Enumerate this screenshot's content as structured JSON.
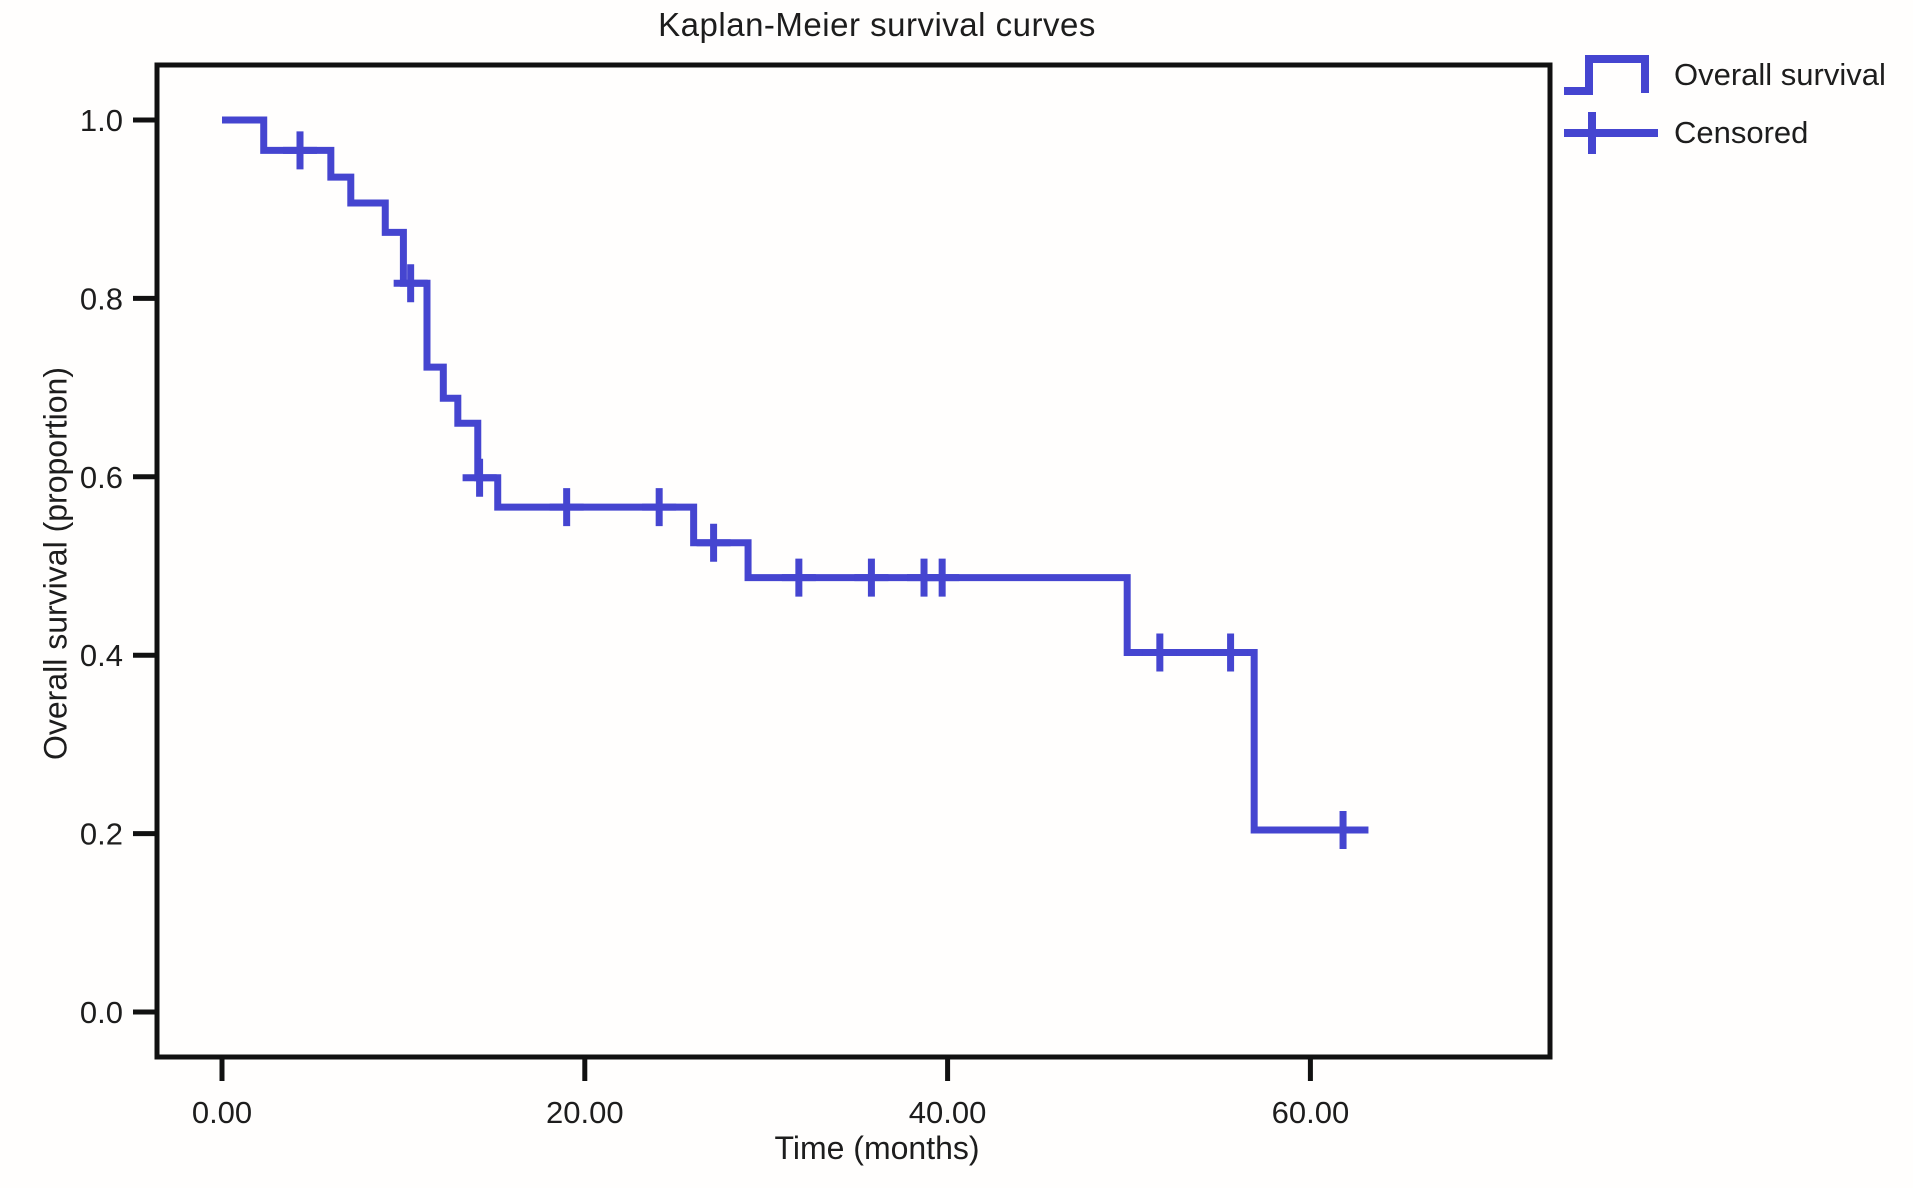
{
  "title": "Kaplan-Meier survival curves",
  "axes": {
    "x_label": "Time (months)",
    "y_label": "Overall survival (proportion)",
    "x_ticks": [
      {
        "value": 0,
        "label": "0.00"
      },
      {
        "value": 20,
        "label": "20.00"
      },
      {
        "value": 40,
        "label": "40.00"
      },
      {
        "value": 60,
        "label": "60.00"
      }
    ],
    "y_ticks": [
      {
        "value": 0.0,
        "label": "0.0"
      },
      {
        "value": 0.2,
        "label": "0.2"
      },
      {
        "value": 0.4,
        "label": "0.4"
      },
      {
        "value": 0.6,
        "label": "0.6"
      },
      {
        "value": 0.8,
        "label": "0.8"
      },
      {
        "value": 1.0,
        "label": "1.0"
      }
    ]
  },
  "legend": {
    "items": [
      {
        "label": "Overall survival",
        "marker": "step-line"
      },
      {
        "label": "Censored",
        "marker": "plus-cross"
      }
    ]
  },
  "colors": {
    "curve": "#4545d0",
    "frame": "#111111",
    "text": "#1d1d1d",
    "background": "#fffefd"
  },
  "chart_data": {
    "type": "line",
    "subtype": "kaplan-meier-step",
    "title": "Kaplan-Meier survival curves",
    "xlabel": "Time (months)",
    "ylabel": "Overall survival (proportion)",
    "xlim": [
      0,
      73
    ],
    "ylim": [
      0,
      1.0
    ],
    "grid": false,
    "legend_position": "outside-top-right",
    "series": [
      {
        "name": "Overall survival",
        "steps": [
          [
            0,
            1.0
          ],
          [
            2.3,
            0.966
          ],
          [
            6.0,
            0.936
          ],
          [
            7.1,
            0.907
          ],
          [
            9.0,
            0.874
          ],
          [
            10.0,
            0.817
          ],
          [
            11.3,
            0.723
          ],
          [
            12.2,
            0.688
          ],
          [
            13.0,
            0.66
          ],
          [
            14.1,
            0.599
          ],
          [
            15.2,
            0.566
          ],
          [
            26.0,
            0.526
          ],
          [
            29.0,
            0.487
          ],
          [
            49.9,
            0.403
          ],
          [
            56.9,
            0.204
          ]
        ],
        "end_time": 63.2
      }
    ],
    "censored": [
      [
        4.3,
        0.966
      ],
      [
        10.4,
        0.817
      ],
      [
        14.2,
        0.599
      ],
      [
        19.0,
        0.566
      ],
      [
        24.1,
        0.566
      ],
      [
        27.1,
        0.526
      ],
      [
        31.8,
        0.487
      ],
      [
        35.8,
        0.487
      ],
      [
        38.7,
        0.487
      ],
      [
        39.7,
        0.487
      ],
      [
        51.7,
        0.403
      ],
      [
        55.6,
        0.403
      ],
      [
        61.8,
        0.204
      ]
    ]
  }
}
